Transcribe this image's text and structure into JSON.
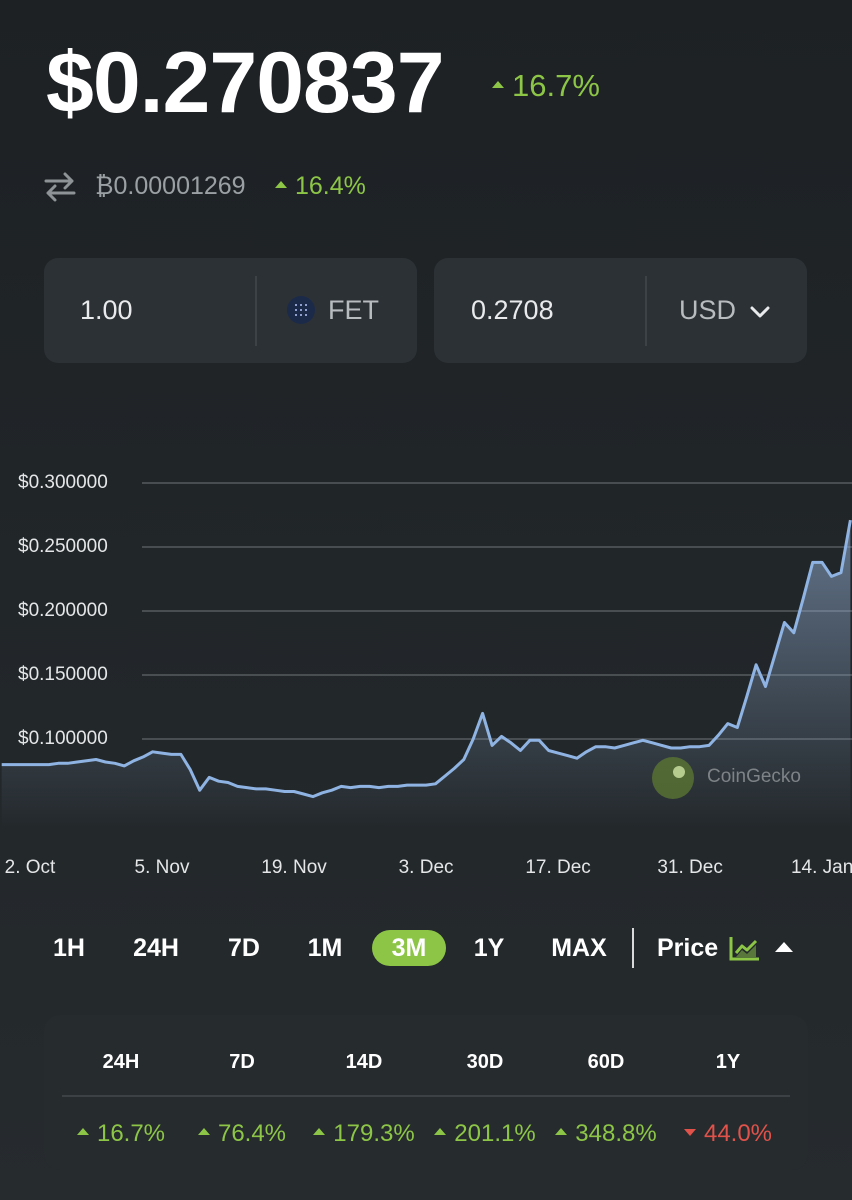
{
  "header": {
    "price": "$0.270837",
    "change": "16.7%",
    "btc_price": "₿0.00001269",
    "btc_change": "16.4%"
  },
  "converter": {
    "amount": "1.00",
    "coin": "FET",
    "result": "0.2708",
    "currency": "USD"
  },
  "chart_data": {
    "type": "area",
    "color": "#8fb4e3",
    "grid": true,
    "watermark": "CoinGecko",
    "categories": [
      null,
      null,
      null,
      "2. Oct",
      null,
      null,
      null,
      null,
      null,
      null,
      null,
      null,
      null,
      null,
      null,
      null,
      null,
      "5. Nov",
      null,
      null,
      null,
      null,
      null,
      null,
      null,
      null,
      null,
      null,
      null,
      null,
      null,
      "19. Nov",
      null,
      null,
      null,
      null,
      null,
      null,
      null,
      null,
      null,
      null,
      null,
      null,
      null,
      "3. Dec",
      null,
      null,
      null,
      null,
      null,
      null,
      null,
      null,
      null,
      null,
      null,
      null,
      null,
      "17. Dec",
      null,
      null,
      null,
      null,
      null,
      null,
      null,
      null,
      null,
      null,
      null,
      null,
      null,
      "31. Dec",
      null,
      null,
      null,
      null,
      null,
      null,
      null,
      null,
      null,
      null,
      null,
      null,
      null,
      "14. Jan",
      null,
      null,
      null
    ],
    "values": [
      0.08,
      0.08,
      0.08,
      0.08,
      0.08,
      0.08,
      0.081,
      0.081,
      0.082,
      0.083,
      0.084,
      0.082,
      0.081,
      0.079,
      0.083,
      0.086,
      0.09,
      0.089,
      0.088,
      0.088,
      0.076,
      0.06,
      0.07,
      0.067,
      0.066,
      0.063,
      0.062,
      0.061,
      0.061,
      0.06,
      0.059,
      0.059,
      0.057,
      0.055,
      0.058,
      0.06,
      0.063,
      0.062,
      0.063,
      0.063,
      0.062,
      0.063,
      0.063,
      0.064,
      0.064,
      0.064,
      0.065,
      0.071,
      0.077,
      0.084,
      0.1,
      0.12,
      0.095,
      0.102,
      0.097,
      0.091,
      0.099,
      0.099,
      0.091,
      0.089,
      0.087,
      0.085,
      0.09,
      0.094,
      0.094,
      0.093,
      0.095,
      0.097,
      0.099,
      0.097,
      0.095,
      0.093,
      0.093,
      0.094,
      0.094,
      0.095,
      0.103,
      0.112,
      0.109,
      0.133,
      0.158,
      0.141,
      0.166,
      0.191,
      0.183,
      0.21,
      0.238,
      0.238,
      0.227,
      0.23,
      0.271
    ],
    "ylim": [
      0.03,
      0.33
    ],
    "yticks": [
      {
        "value": 0.1,
        "label": "$0.100000"
      },
      {
        "value": 0.15,
        "label": "$0.150000"
      },
      {
        "value": 0.2,
        "label": "$0.200000"
      },
      {
        "value": 0.25,
        "label": "$0.250000"
      },
      {
        "value": 0.3,
        "label": "$0.300000"
      }
    ]
  },
  "timeframes": {
    "options": [
      "1H",
      "24H",
      "7D",
      "1M",
      "3M",
      "1Y",
      "MAX"
    ],
    "selected": 4,
    "mode": "Price"
  },
  "stats": {
    "headers": [
      "24H",
      "7D",
      "14D",
      "30D",
      "60D",
      "1Y"
    ],
    "values": [
      "16.7%",
      "76.4%",
      "179.3%",
      "201.1%",
      "348.8%",
      "44.0%"
    ],
    "directions": [
      "up",
      "up",
      "up",
      "up",
      "up",
      "down"
    ]
  }
}
